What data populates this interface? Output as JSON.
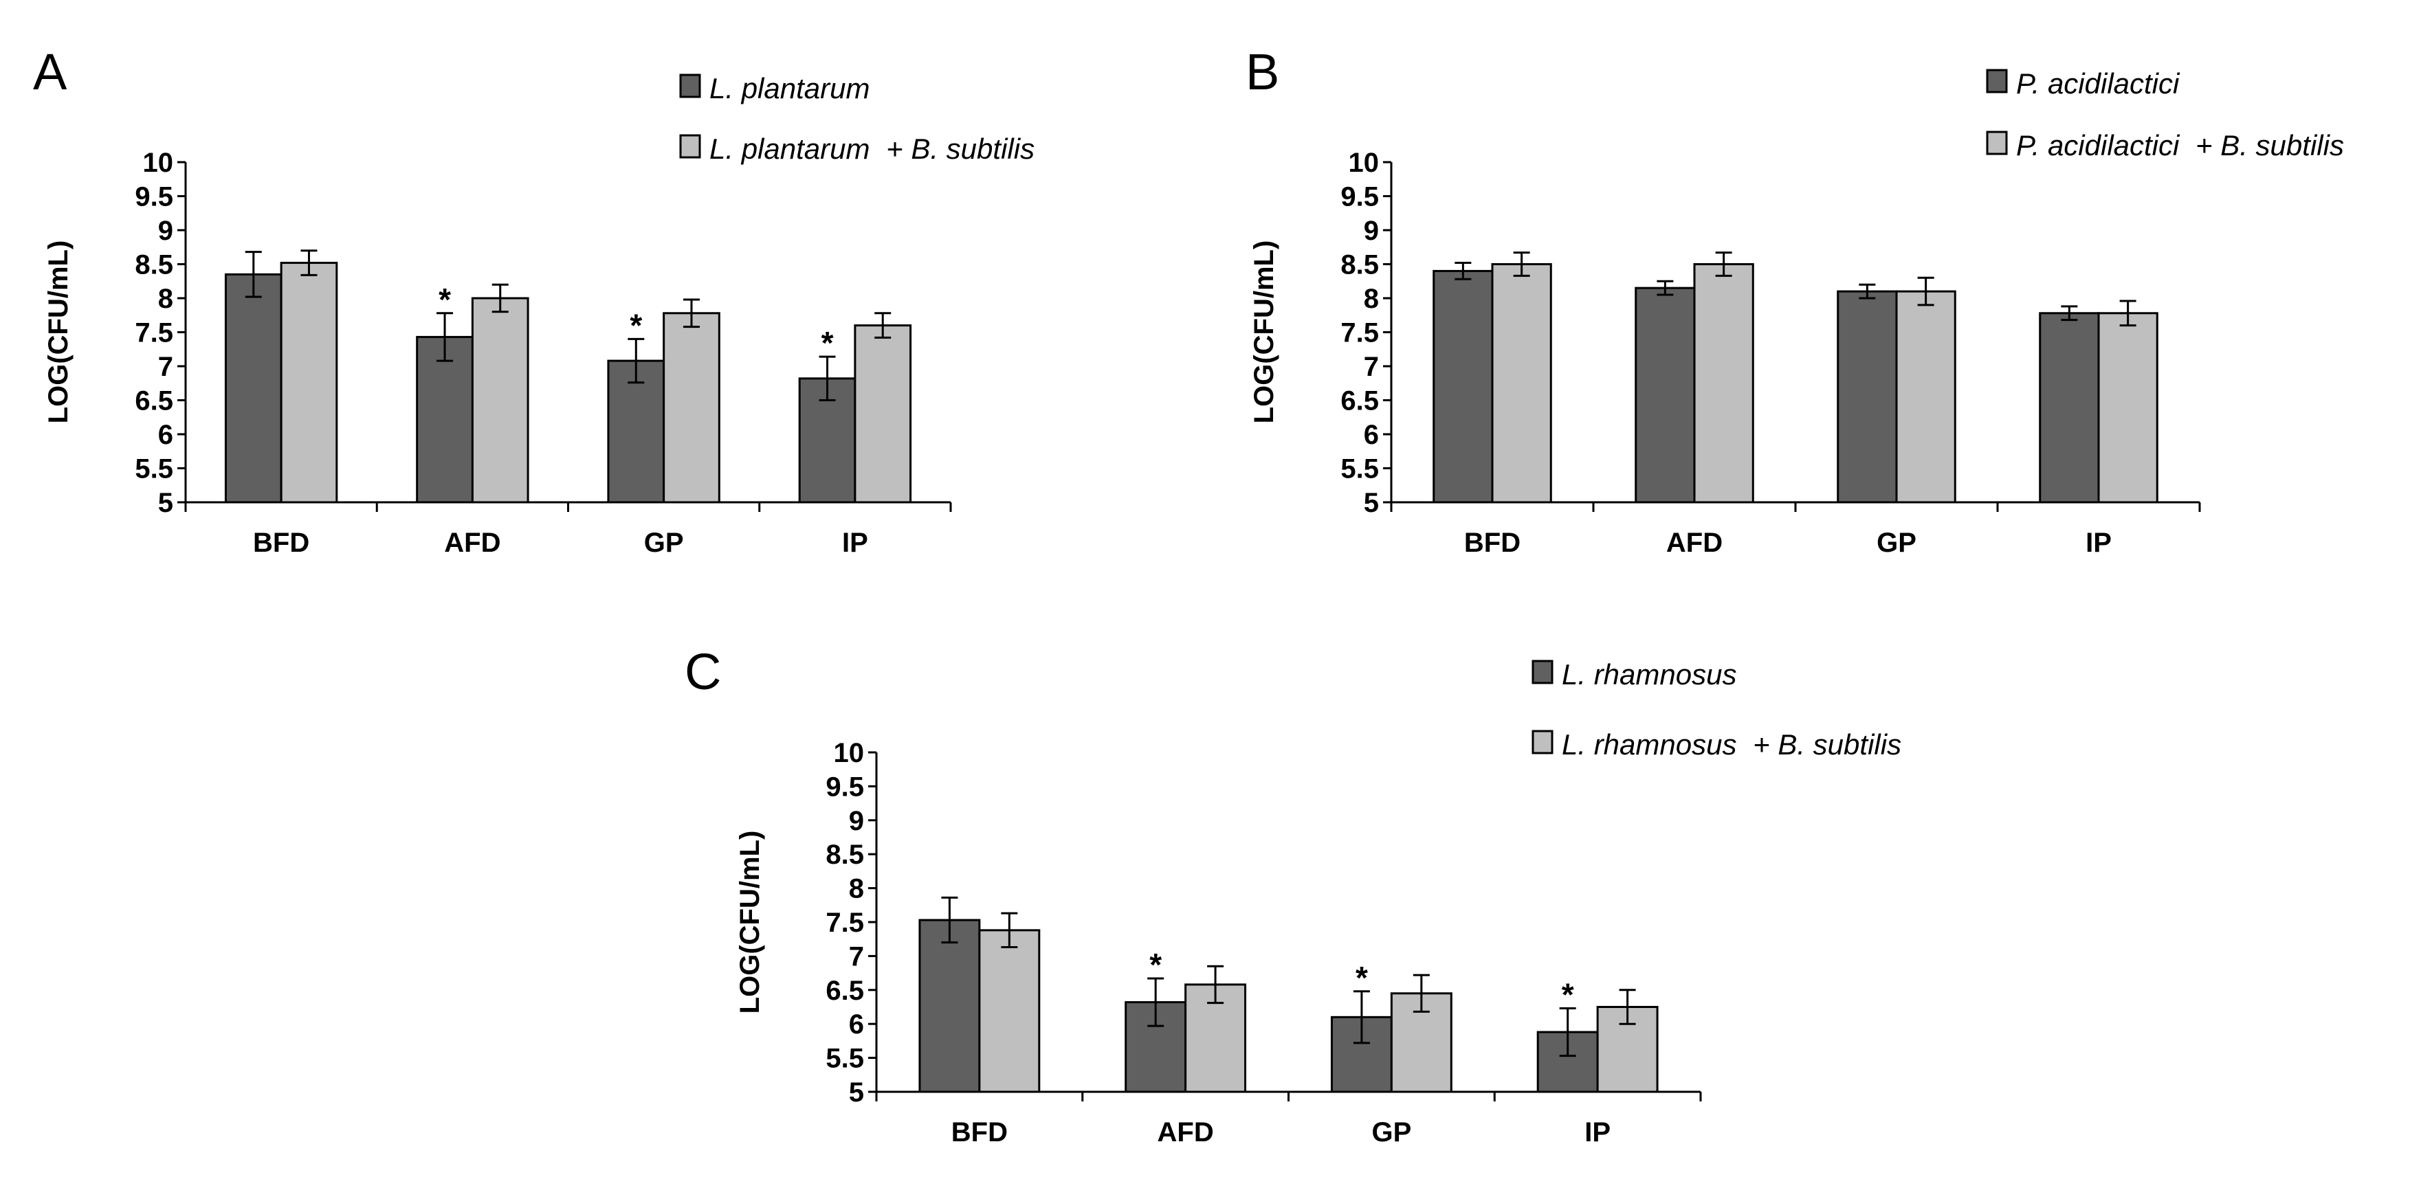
{
  "figure": {
    "colors": {
      "dark": "#606060",
      "light": "#bfbfbf",
      "stroke": "#000000"
    }
  },
  "chart_data": [
    {
      "type": "bar",
      "panel": "A",
      "categories": [
        "BFD",
        "AFD",
        "GP",
        "IP"
      ],
      "ylabel": "LOG(CFU/mL)",
      "ylim": [
        5,
        10
      ],
      "yticks": [
        "5",
        "5.5",
        "6",
        "6.5",
        "7",
        "7.5",
        "8",
        "8.5",
        "9",
        "9.5",
        "10"
      ],
      "series": [
        {
          "name": "L. plantarum",
          "legend_main": "L. plantarum",
          "legend_extra": "",
          "color": "#606060",
          "values": [
            8.35,
            7.43,
            7.08,
            6.82
          ],
          "errors": [
            0.33,
            0.35,
            0.32,
            0.32
          ],
          "significance": [
            "",
            "*",
            "*",
            "*"
          ]
        },
        {
          "name": "L. plantarum + B. subtilis",
          "legend_main": "L. plantarum",
          "legend_extra": " + B. subtilis",
          "color": "#bfbfbf",
          "values": [
            8.52,
            8.0,
            7.78,
            7.6
          ],
          "errors": [
            0.18,
            0.2,
            0.2,
            0.18
          ],
          "significance": [
            "",
            "",
            "",
            ""
          ]
        }
      ]
    },
    {
      "type": "bar",
      "panel": "B",
      "categories": [
        "BFD",
        "AFD",
        "GP",
        "IP"
      ],
      "ylabel": "LOG(CFU/mL)",
      "ylim": [
        5,
        10
      ],
      "yticks": [
        "5",
        "5.5",
        "6",
        "6.5",
        "7",
        "7.5",
        "8",
        "8.5",
        "9",
        "9.5",
        "10"
      ],
      "series": [
        {
          "name": "P. acidilactici",
          "legend_main": "P. acidilactici",
          "legend_extra": "",
          "color": "#606060",
          "values": [
            8.4,
            8.15,
            8.1,
            7.78
          ],
          "errors": [
            0.12,
            0.1,
            0.1,
            0.1
          ],
          "significance": [
            "",
            "",
            "",
            ""
          ]
        },
        {
          "name": "P. acidilactici + B. subtilis",
          "legend_main": "P. acidilactici",
          "legend_extra": " + B. subtilis",
          "color": "#bfbfbf",
          "values": [
            8.5,
            8.5,
            8.1,
            7.78
          ],
          "errors": [
            0.17,
            0.17,
            0.2,
            0.18
          ],
          "significance": [
            "",
            "",
            "",
            ""
          ]
        }
      ]
    },
    {
      "type": "bar",
      "panel": "C",
      "categories": [
        "BFD",
        "AFD",
        "GP",
        "IP"
      ],
      "ylabel": "LOG(CFU/mL)",
      "ylim": [
        5,
        10
      ],
      "yticks": [
        "5",
        "5.5",
        "6",
        "6.5",
        "7",
        "7.5",
        "8",
        "8.5",
        "9",
        "9.5",
        "10"
      ],
      "series": [
        {
          "name": "L. rhamnosus",
          "legend_main": "L. rhamnosus",
          "legend_extra": "",
          "color": "#606060",
          "values": [
            7.53,
            6.32,
            6.1,
            5.88
          ],
          "errors": [
            0.33,
            0.35,
            0.38,
            0.35
          ],
          "significance": [
            "",
            "*",
            "*",
            "*"
          ]
        },
        {
          "name": "L. rhamnosus + B. subtilis",
          "legend_main": "L. rhamnosus",
          "legend_extra": " + B. subtilis",
          "color": "#bfbfbf",
          "values": [
            7.38,
            6.58,
            6.45,
            6.25
          ],
          "errors": [
            0.25,
            0.27,
            0.27,
            0.25
          ],
          "significance": [
            "",
            "",
            "",
            ""
          ]
        }
      ]
    }
  ]
}
